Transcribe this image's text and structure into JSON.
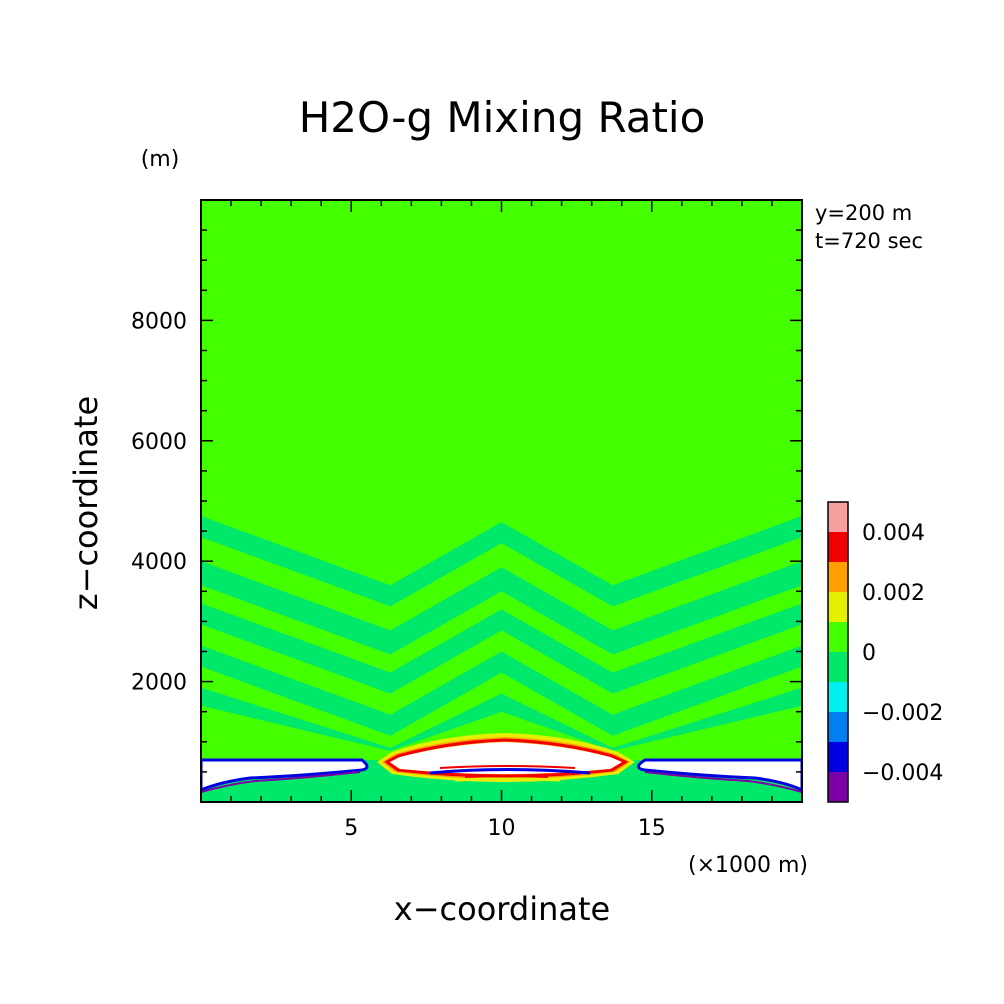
{
  "chart_data": {
    "type": "heatmap",
    "title": "H2O-g Mixing Ratio",
    "xlabel": "x−coordinate",
    "ylabel": "z−coordinate",
    "x_unit": "(×1000 m)",
    "y_unit": "(m)",
    "annotations": [
      "y=200 m",
      "t=720 sec"
    ],
    "xlim": [
      0,
      20
    ],
    "ylim": [
      0,
      10000
    ],
    "x_ticks": [
      5,
      10,
      15
    ],
    "y_ticks": [
      2000,
      4000,
      6000,
      8000
    ],
    "colorbar": {
      "levels": [
        -0.005,
        -0.004,
        -0.003,
        -0.002,
        -0.001,
        0,
        0.001,
        0.002,
        0.003,
        0.004,
        0.005
      ],
      "colors": [
        "#7B00A6",
        "#0000E0",
        "#0080F0",
        "#00F0F0",
        "#00E86A",
        "#44FF00",
        "#E4F000",
        "#FFA000",
        "#F00000",
        "#F8A0A0"
      ],
      "labels": [
        "−0.004",
        "−0.002",
        "0",
        "0.002",
        "0.004"
      ],
      "label_values": [
        -0.004,
        -0.002,
        0,
        0.002,
        0.004
      ]
    },
    "field": {
      "background_value": 0.0005,
      "banded_layers_z": [
        1300,
        1600,
        1950,
        2300,
        2650,
        3000,
        3300,
        3700,
        4100,
        4450
      ],
      "near_surface_band_value": -0.0005,
      "white_region_description_values": [
        -0.006,
        0.006
      ],
      "low_level_top_z": 680,
      "central_anomaly": {
        "x_range": [
          6,
          14
        ],
        "z_range": [
          330,
          1120
        ],
        "peak_value": 0.006
      }
    }
  }
}
